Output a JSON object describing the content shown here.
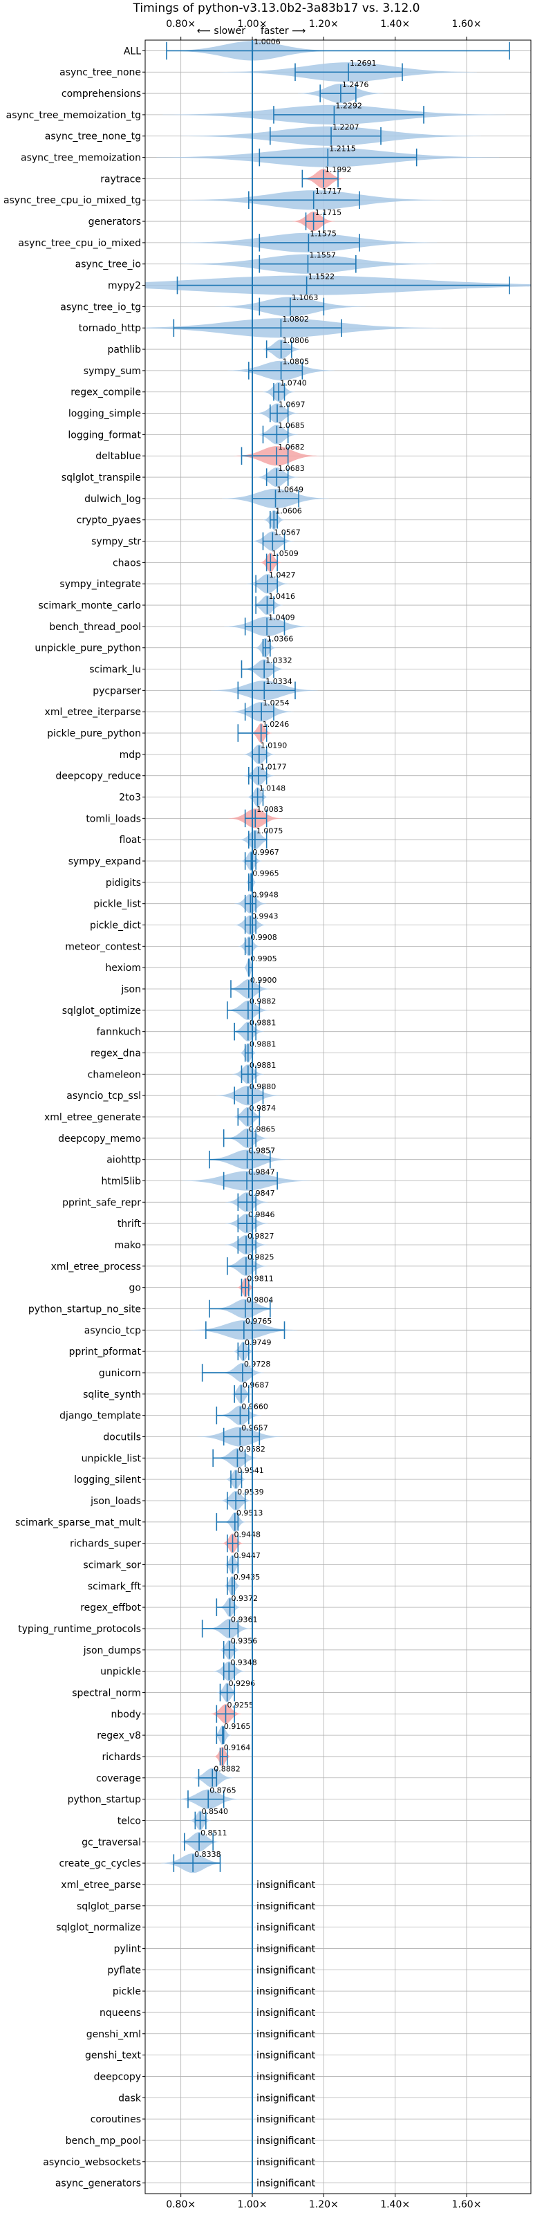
{
  "chart_data": {
    "type": "violin",
    "title": "Timings of python-v3.13.0b2-3a83b17 vs. 3.12.0",
    "direction_labels": {
      "slower": "⟵ slower",
      "faster": "faster ⟶"
    },
    "xlim": [
      0.7,
      1.78
    ],
    "xticks": [
      0.8,
      1.0,
      1.2,
      1.4,
      1.6
    ],
    "xtick_labels": [
      "0.80×",
      "1.00×",
      "1.20×",
      "1.40×",
      "1.60×"
    ],
    "reference_line": 1.0,
    "colors": {
      "normal": "#1f77b4",
      "fill": "#a9c9e6",
      "highlight_fill": "#f4a6a6",
      "grid": "#b0b0b0"
    },
    "benchmarks": [
      {
        "name": "ALL",
        "value": 1.0006,
        "label": "1.0006",
        "min": 0.76,
        "max": 1.72,
        "spread": 0.08
      },
      {
        "name": "async_tree_none",
        "value": 1.2691,
        "label": "1.2691",
        "min": 1.12,
        "max": 1.42,
        "spread": 0.12
      },
      {
        "name": "comprehensions",
        "value": 1.2476,
        "label": "1.2476",
        "min": 1.19,
        "max": 1.29,
        "spread": 0.04
      },
      {
        "name": "async_tree_memoization_tg",
        "value": 1.2292,
        "label": "1.2292",
        "min": 1.06,
        "max": 1.48,
        "spread": 0.16
      },
      {
        "name": "async_tree_none_tg",
        "value": 1.2207,
        "label": "1.2207",
        "min": 1.05,
        "max": 1.36,
        "spread": 0.14
      },
      {
        "name": "async_tree_memoization",
        "value": 1.2115,
        "label": "1.2115",
        "min": 1.02,
        "max": 1.46,
        "spread": 0.16
      },
      {
        "name": "raytrace",
        "value": 1.1992,
        "label": "1.1992",
        "min": 1.14,
        "max": 1.24,
        "spread": 0.02,
        "highlight": true
      },
      {
        "name": "async_tree_cpu_io_mixed_tg",
        "value": 1.1717,
        "label": "1.1717",
        "min": 0.99,
        "max": 1.3,
        "spread": 0.12
      },
      {
        "name": "generators",
        "value": 1.1715,
        "label": "1.1715",
        "min": 1.15,
        "max": 1.2,
        "spread": 0.02,
        "highlight": true
      },
      {
        "name": "async_tree_cpu_io_mixed",
        "value": 1.1575,
        "label": "1.1575",
        "min": 1.02,
        "max": 1.3,
        "spread": 0.12
      },
      {
        "name": "async_tree_io",
        "value": 1.1557,
        "label": "1.1557",
        "min": 1.02,
        "max": 1.29,
        "spread": 0.12
      },
      {
        "name": "mypy2",
        "value": 1.1522,
        "label": "1.1522",
        "min": 0.79,
        "max": 1.72,
        "spread": 0.3
      },
      {
        "name": "async_tree_io_tg",
        "value": 1.1063,
        "label": "1.1063",
        "min": 1.02,
        "max": 1.2,
        "spread": 0.07
      },
      {
        "name": "tornado_http",
        "value": 1.0802,
        "label": "1.0802",
        "min": 0.78,
        "max": 1.25,
        "spread": 0.15
      },
      {
        "name": "pathlib",
        "value": 1.0806,
        "label": "1.0806",
        "min": 1.04,
        "max": 1.11,
        "spread": 0.02
      },
      {
        "name": "sympy_sum",
        "value": 1.0805,
        "label": "1.0805",
        "min": 0.99,
        "max": 1.14,
        "spread": 0.05
      },
      {
        "name": "regex_compile",
        "value": 1.074,
        "label": "1.0740",
        "min": 1.06,
        "max": 1.09,
        "spread": 0.015
      },
      {
        "name": "logging_simple",
        "value": 1.0697,
        "label": "1.0697",
        "min": 1.05,
        "max": 1.1,
        "spread": 0.02
      },
      {
        "name": "logging_format",
        "value": 1.0685,
        "label": "1.0685",
        "min": 1.03,
        "max": 1.1,
        "spread": 0.02
      },
      {
        "name": "deltablue",
        "value": 1.0682,
        "label": "1.0682",
        "min": 0.97,
        "max": 1.1,
        "spread": 0.04,
        "highlight": true
      },
      {
        "name": "sqlglot_transpile",
        "value": 1.0683,
        "label": "1.0683",
        "min": 1.04,
        "max": 1.1,
        "spread": 0.02
      },
      {
        "name": "dulwich_log",
        "value": 1.0649,
        "label": "1.0649",
        "min": 1.0,
        "max": 1.13,
        "spread": 0.05
      },
      {
        "name": "crypto_pyaes",
        "value": 1.0606,
        "label": "1.0606",
        "min": 1.05,
        "max": 1.07,
        "spread": 0.01
      },
      {
        "name": "sympy_str",
        "value": 1.0567,
        "label": "1.0567",
        "min": 1.03,
        "max": 1.09,
        "spread": 0.02
      },
      {
        "name": "chaos",
        "value": 1.0509,
        "label": "1.0509",
        "min": 1.04,
        "max": 1.07,
        "spread": 0.01,
        "highlight": true
      },
      {
        "name": "sympy_integrate",
        "value": 1.0427,
        "label": "1.0427",
        "min": 1.01,
        "max": 1.07,
        "spread": 0.02
      },
      {
        "name": "scimark_monte_carlo",
        "value": 1.0416,
        "label": "1.0416",
        "min": 1.01,
        "max": 1.06,
        "spread": 0.015
      },
      {
        "name": "bench_thread_pool",
        "value": 1.0409,
        "label": "1.0409",
        "min": 0.98,
        "max": 1.09,
        "spread": 0.04
      },
      {
        "name": "unpickle_pure_python",
        "value": 1.0366,
        "label": "1.0366",
        "min": 1.03,
        "max": 1.05,
        "spread": 0.01
      },
      {
        "name": "scimark_lu",
        "value": 1.0332,
        "label": "1.0332",
        "min": 0.97,
        "max": 1.06,
        "spread": 0.02
      },
      {
        "name": "pycparser",
        "value": 1.0334,
        "label": "1.0334",
        "min": 0.96,
        "max": 1.12,
        "spread": 0.05
      },
      {
        "name": "xml_etree_iterparse",
        "value": 1.0254,
        "label": "1.0254",
        "min": 0.98,
        "max": 1.06,
        "spread": 0.03
      },
      {
        "name": "pickle_pure_python",
        "value": 1.0246,
        "label": "1.0246",
        "min": 0.96,
        "max": 1.04,
        "spread": 0.01,
        "highlight": true
      },
      {
        "name": "mdp",
        "value": 1.019,
        "label": "1.0190",
        "min": 1.0,
        "max": 1.04,
        "spread": 0.015
      },
      {
        "name": "deepcopy_reduce",
        "value": 1.0177,
        "label": "1.0177",
        "min": 0.99,
        "max": 1.04,
        "spread": 0.015
      },
      {
        "name": "2to3",
        "value": 1.0148,
        "label": "1.0148",
        "min": 1.0,
        "max": 1.03,
        "spread": 0.01
      },
      {
        "name": "tomli_loads",
        "value": 1.0083,
        "label": "1.0083",
        "min": 0.98,
        "max": 1.04,
        "spread": 0.025,
        "highlight": true
      },
      {
        "name": "float",
        "value": 1.0075,
        "label": "1.0075",
        "min": 0.99,
        "max": 1.04,
        "spread": 0.015
      },
      {
        "name": "sympy_expand",
        "value": 0.9967,
        "label": "0.9967",
        "min": 0.98,
        "max": 1.01,
        "spread": 0.01
      },
      {
        "name": "pidigits",
        "value": 0.9965,
        "label": "0.9965",
        "min": 0.99,
        "max": 1.0,
        "spread": 0.005
      },
      {
        "name": "pickle_list",
        "value": 0.9948,
        "label": "0.9948",
        "min": 0.98,
        "max": 1.01,
        "spread": 0.015
      },
      {
        "name": "pickle_dict",
        "value": 0.9943,
        "label": "0.9943",
        "min": 0.98,
        "max": 1.01,
        "spread": 0.015
      },
      {
        "name": "meteor_contest",
        "value": 0.9908,
        "label": "0.9908",
        "min": 0.98,
        "max": 1.0,
        "spread": 0.01
      },
      {
        "name": "hexiom",
        "value": 0.9905,
        "label": "0.9905",
        "min": 0.99,
        "max": 1.0,
        "spread": 0.005
      },
      {
        "name": "json",
        "value": 0.99,
        "label": "0.9900",
        "min": 0.94,
        "max": 1.02,
        "spread": 0.02
      },
      {
        "name": "sqlglot_optimize",
        "value": 0.9882,
        "label": "0.9882",
        "min": 0.93,
        "max": 1.02,
        "spread": 0.02
      },
      {
        "name": "fannkuch",
        "value": 0.9881,
        "label": "0.9881",
        "min": 0.95,
        "max": 1.01,
        "spread": 0.015
      },
      {
        "name": "regex_dna",
        "value": 0.9881,
        "label": "0.9881",
        "min": 0.98,
        "max": 1.0,
        "spread": 0.008
      },
      {
        "name": "chameleon",
        "value": 0.9881,
        "label": "0.9881",
        "min": 0.97,
        "max": 1.01,
        "spread": 0.015
      },
      {
        "name": "asyncio_tcp_ssl",
        "value": 0.988,
        "label": "0.9880",
        "min": 0.95,
        "max": 1.03,
        "spread": 0.03
      },
      {
        "name": "xml_etree_generate",
        "value": 0.9874,
        "label": "0.9874",
        "min": 0.96,
        "max": 1.02,
        "spread": 0.015
      },
      {
        "name": "deepcopy_memo",
        "value": 0.9865,
        "label": "0.9865",
        "min": 0.92,
        "max": 1.01,
        "spread": 0.02
      },
      {
        "name": "aiohttp",
        "value": 0.9857,
        "label": "0.9857",
        "min": 0.88,
        "max": 1.05,
        "spread": 0.04
      },
      {
        "name": "html5lib",
        "value": 0.9847,
        "label": "0.9847",
        "min": 0.92,
        "max": 1.07,
        "spread": 0.06
      },
      {
        "name": "pprint_safe_repr",
        "value": 0.9847,
        "label": "0.9847",
        "min": 0.96,
        "max": 1.01,
        "spread": 0.02
      },
      {
        "name": "thrift",
        "value": 0.9846,
        "label": "0.9846",
        "min": 0.96,
        "max": 1.01,
        "spread": 0.02
      },
      {
        "name": "mako",
        "value": 0.9827,
        "label": "0.9827",
        "min": 0.96,
        "max": 1.01,
        "spread": 0.02
      },
      {
        "name": "xml_etree_process",
        "value": 0.9825,
        "label": "0.9825",
        "min": 0.93,
        "max": 1.01,
        "spread": 0.02
      },
      {
        "name": "go",
        "value": 0.9811,
        "label": "0.9811",
        "min": 0.97,
        "max": 0.99,
        "spread": 0.008,
        "highlight": true
      },
      {
        "name": "python_startup_no_site",
        "value": 0.9804,
        "label": "0.9804",
        "min": 0.88,
        "max": 1.05,
        "spread": 0.03
      },
      {
        "name": "asyncio_tcp",
        "value": 0.9765,
        "label": "0.9765",
        "min": 0.87,
        "max": 1.09,
        "spread": 0.05
      },
      {
        "name": "pprint_pformat",
        "value": 0.9749,
        "label": "0.9749",
        "min": 0.96,
        "max": 0.99,
        "spread": 0.01
      },
      {
        "name": "gunicorn",
        "value": 0.9728,
        "label": "0.9728",
        "min": 0.86,
        "max": 1.0,
        "spread": 0.02
      },
      {
        "name": "sqlite_synth",
        "value": 0.9687,
        "label": "0.9687",
        "min": 0.95,
        "max": 0.99,
        "spread": 0.01
      },
      {
        "name": "django_template",
        "value": 0.966,
        "label": "0.9660",
        "min": 0.9,
        "max": 0.99,
        "spread": 0.02
      },
      {
        "name": "docutils",
        "value": 0.9657,
        "label": "0.9657",
        "min": 0.92,
        "max": 1.02,
        "spread": 0.04
      },
      {
        "name": "unpickle_list",
        "value": 0.9582,
        "label": "0.9582",
        "min": 0.89,
        "max": 0.98,
        "spread": 0.02
      },
      {
        "name": "logging_silent",
        "value": 0.9541,
        "label": "0.9541",
        "min": 0.94,
        "max": 0.97,
        "spread": 0.01
      },
      {
        "name": "json_loads",
        "value": 0.9539,
        "label": "0.9539",
        "min": 0.93,
        "max": 0.98,
        "spread": 0.015
      },
      {
        "name": "scimark_sparse_mat_mult",
        "value": 0.9513,
        "label": "0.9513",
        "min": 0.9,
        "max": 0.96,
        "spread": 0.01
      },
      {
        "name": "richards_super",
        "value": 0.9448,
        "label": "0.9448",
        "min": 0.93,
        "max": 0.96,
        "spread": 0.01,
        "highlight": true
      },
      {
        "name": "scimark_sor",
        "value": 0.9447,
        "label": "0.9447",
        "min": 0.93,
        "max": 0.96,
        "spread": 0.008
      },
      {
        "name": "scimark_fft",
        "value": 0.9435,
        "label": "0.9435",
        "min": 0.93,
        "max": 0.95,
        "spread": 0.008
      },
      {
        "name": "regex_effbot",
        "value": 0.9372,
        "label": "0.9372",
        "min": 0.9,
        "max": 0.95,
        "spread": 0.01
      },
      {
        "name": "typing_runtime_protocols",
        "value": 0.9361,
        "label": "0.9361",
        "min": 0.86,
        "max": 0.96,
        "spread": 0.02
      },
      {
        "name": "json_dumps",
        "value": 0.9356,
        "label": "0.9356",
        "min": 0.92,
        "max": 0.95,
        "spread": 0.01
      },
      {
        "name": "unpickle",
        "value": 0.9348,
        "label": "0.9348",
        "min": 0.92,
        "max": 0.95,
        "spread": 0.015
      },
      {
        "name": "spectral_norm",
        "value": 0.9296,
        "label": "0.9296",
        "min": 0.91,
        "max": 0.95,
        "spread": 0.01
      },
      {
        "name": "nbody",
        "value": 0.9255,
        "label": "0.9255",
        "min": 0.9,
        "max": 0.95,
        "spread": 0.015,
        "highlight": true
      },
      {
        "name": "regex_v8",
        "value": 0.9165,
        "label": "0.9165",
        "min": 0.9,
        "max": 0.92,
        "spread": 0.008
      },
      {
        "name": "richards",
        "value": 0.9164,
        "label": "0.9164",
        "min": 0.91,
        "max": 0.93,
        "spread": 0.008,
        "highlight": true
      },
      {
        "name": "coverage",
        "value": 0.8882,
        "label": "0.8882",
        "min": 0.85,
        "max": 0.9,
        "spread": 0.02
      },
      {
        "name": "python_startup",
        "value": 0.8765,
        "label": "0.8765",
        "min": 0.82,
        "max": 0.92,
        "spread": 0.03
      },
      {
        "name": "telco",
        "value": 0.854,
        "label": "0.8540",
        "min": 0.84,
        "max": 0.87,
        "spread": 0.01
      },
      {
        "name": "gc_traversal",
        "value": 0.8511,
        "label": "0.8511",
        "min": 0.81,
        "max": 0.89,
        "spread": 0.02
      },
      {
        "name": "create_gc_cycles",
        "value": 0.8338,
        "label": "0.8338",
        "min": 0.78,
        "max": 0.91,
        "spread": 0.03
      },
      {
        "name": "xml_etree_parse",
        "insignificant": true,
        "label": "insignificant"
      },
      {
        "name": "sqlglot_parse",
        "insignificant": true,
        "label": "insignificant"
      },
      {
        "name": "sqlglot_normalize",
        "insignificant": true,
        "label": "insignificant"
      },
      {
        "name": "pylint",
        "insignificant": true,
        "label": "insignificant"
      },
      {
        "name": "pyflate",
        "insignificant": true,
        "label": "insignificant"
      },
      {
        "name": "pickle",
        "insignificant": true,
        "label": "insignificant"
      },
      {
        "name": "nqueens",
        "insignificant": true,
        "label": "insignificant"
      },
      {
        "name": "genshi_xml",
        "insignificant": true,
        "label": "insignificant"
      },
      {
        "name": "genshi_text",
        "insignificant": true,
        "label": "insignificant"
      },
      {
        "name": "deepcopy",
        "insignificant": true,
        "label": "insignificant"
      },
      {
        "name": "dask",
        "insignificant": true,
        "label": "insignificant"
      },
      {
        "name": "coroutines",
        "insignificant": true,
        "label": "insignificant"
      },
      {
        "name": "bench_mp_pool",
        "insignificant": true,
        "label": "insignificant"
      },
      {
        "name": "asyncio_websockets",
        "insignificant": true,
        "label": "insignificant"
      },
      {
        "name": "async_generators",
        "insignificant": true,
        "label": "insignificant"
      }
    ]
  }
}
